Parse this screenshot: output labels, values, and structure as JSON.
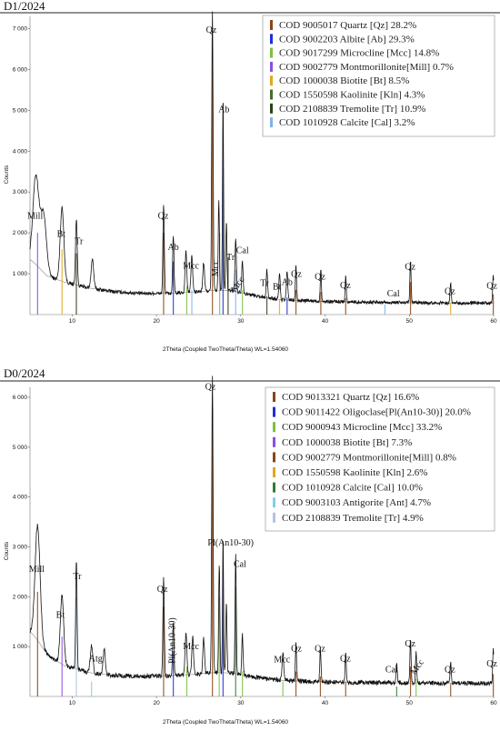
{
  "chart_data": [
    {
      "type": "line",
      "title": "D1/2024",
      "xlabel": "2Theta (Coupled TwoTheta/Theta) WL=1.54060",
      "ylabel": "Counts",
      "xlim": [
        5,
        60
      ],
      "ylim": [
        0,
        7300
      ],
      "xticks": [
        10,
        20,
        30,
        40,
        50,
        60
      ],
      "yticks": [
        1000,
        2000,
        3000,
        4000,
        5000,
        6000,
        7000
      ],
      "ytick_labels": [
        "1 000",
        "2 000",
        "3 000",
        "4 000",
        "5 000",
        "6 000",
        "7 000"
      ],
      "legend_position": "top-right",
      "legend": [
        {
          "label": "COD 9005017 Quartz [Qz] 28.2%",
          "color": "#8B4513"
        },
        {
          "label": "COD 9002203 Albite [Ab] 29.3%",
          "color": "#1f2fd6"
        },
        {
          "label": "COD 9017299 Microcline [Mcc] 14.8%",
          "color": "#7bc043"
        },
        {
          "label": "COD 9002779 Montmorillonite[Mill] 0.7%",
          "color": "#8a4fe0"
        },
        {
          "label": "COD 1000038 Biotite [Bt] 8.5%",
          "color": "#e0a81e"
        },
        {
          "label": "COD 1550598 Kaolinite [Kln] 4.3%",
          "color": "#4a6b2a"
        },
        {
          "label": "COD 2108839 Tremolite [Tr] 10.9%",
          "color": "#2d3f1c"
        },
        {
          "label": "COD 1010928 Calcite [Cal] 3.2%",
          "color": "#7fb3e8"
        }
      ],
      "background": [
        [
          5,
          1350
        ],
        [
          5.6,
          1250
        ],
        [
          7,
          950
        ],
        [
          9,
          800
        ],
        [
          12,
          650
        ],
        [
          15,
          560
        ],
        [
          18,
          520
        ],
        [
          22,
          520
        ],
        [
          25,
          560
        ],
        [
          27,
          600
        ],
        [
          29,
          580
        ],
        [
          32,
          450
        ],
        [
          35,
          360
        ],
        [
          40,
          320
        ],
        [
          50,
          290
        ],
        [
          60,
          280
        ]
      ],
      "peaks": [
        {
          "x": 5.7,
          "y": 2150,
          "w": 0.35
        },
        {
          "x": 6.6,
          "y": 1400,
          "w": 0.35
        },
        {
          "x": 8.8,
          "y": 1800,
          "w": 0.22
        },
        {
          "x": 10.5,
          "y": 1620,
          "w": 0.1
        },
        {
          "x": 12.4,
          "y": 720,
          "w": 0.15
        },
        {
          "x": 20.85,
          "y": 2180,
          "w": 0.08
        },
        {
          "x": 22.0,
          "y": 1400,
          "w": 0.08
        },
        {
          "x": 23.5,
          "y": 1020,
          "w": 0.1
        },
        {
          "x": 24.2,
          "y": 900,
          "w": 0.1
        },
        {
          "x": 25.6,
          "y": 700,
          "w": 0.1
        },
        {
          "x": 26.64,
          "y": 6800,
          "w": 0.08
        },
        {
          "x": 27.4,
          "y": 2200,
          "w": 0.07
        },
        {
          "x": 27.9,
          "y": 4850,
          "w": 0.06
        },
        {
          "x": 28.3,
          "y": 1700,
          "w": 0.07
        },
        {
          "x": 29.4,
          "y": 1300,
          "w": 0.08
        },
        {
          "x": 30.2,
          "y": 800,
          "w": 0.08
        },
        {
          "x": 33.1,
          "y": 680,
          "w": 0.08
        },
        {
          "x": 34.6,
          "y": 660,
          "w": 0.08
        },
        {
          "x": 35.5,
          "y": 720,
          "w": 0.08
        },
        {
          "x": 36.55,
          "y": 850,
          "w": 0.07
        },
        {
          "x": 39.5,
          "y": 800,
          "w": 0.07
        },
        {
          "x": 42.45,
          "y": 620,
          "w": 0.07
        },
        {
          "x": 50.14,
          "y": 1000,
          "w": 0.07
        },
        {
          "x": 54.9,
          "y": 480,
          "w": 0.07
        },
        {
          "x": 59.96,
          "y": 700,
          "w": 0.07
        }
      ],
      "markers": [
        {
          "x": 5.9,
          "h": 2000,
          "color": "#8a4fe0"
        },
        {
          "x": 8.8,
          "h": 1600,
          "color": "#e0a81e"
        },
        {
          "x": 10.5,
          "h": 1500,
          "color": "#2d3f1c"
        },
        {
          "x": 20.85,
          "h": 2000,
          "color": "#8B4513"
        },
        {
          "x": 22.0,
          "h": 1300,
          "color": "#1f2fd6"
        },
        {
          "x": 23.6,
          "h": 700,
          "color": "#7bc043"
        },
        {
          "x": 24.2,
          "h": 600,
          "color": "#7fb3e8"
        },
        {
          "x": 26.64,
          "h": 6500,
          "color": "#8B4513"
        },
        {
          "x": 27.5,
          "h": 2000,
          "color": "#7bc043"
        },
        {
          "x": 27.9,
          "h": 4600,
          "color": "#1f2fd6"
        },
        {
          "x": 28.5,
          "h": 1400,
          "color": "#2d3f1c"
        },
        {
          "x": 29.4,
          "h": 1100,
          "color": "#7fb3e8"
        },
        {
          "x": 30.2,
          "h": 600,
          "color": "#7bc043"
        },
        {
          "x": 33.1,
          "h": 450,
          "color": "#2d3f1c"
        },
        {
          "x": 34.6,
          "h": 380,
          "color": "#e0a81e"
        },
        {
          "x": 35.5,
          "h": 420,
          "color": "#1f2fd6"
        },
        {
          "x": 36.55,
          "h": 600,
          "color": "#8B4513"
        },
        {
          "x": 39.5,
          "h": 550,
          "color": "#8B4513"
        },
        {
          "x": 42.45,
          "h": 400,
          "color": "#8B4513"
        },
        {
          "x": 47.1,
          "h": 250,
          "color": "#7fb3e8"
        },
        {
          "x": 50.14,
          "h": 800,
          "color": "#8B4513"
        },
        {
          "x": 54.9,
          "h": 300,
          "color": "#e0a81e"
        },
        {
          "x": 59.96,
          "h": 500,
          "color": "#8B4513"
        }
      ],
      "annotations": [
        {
          "text": "Mill",
          "x": 5.6,
          "y": 2350
        },
        {
          "text": "Bt",
          "x": 8.7,
          "y": 1900
        },
        {
          "text": "Tr",
          "x": 10.8,
          "y": 1730
        },
        {
          "text": "Qz",
          "x": 20.8,
          "y": 2350
        },
        {
          "text": "Ab",
          "x": 22.0,
          "y": 1580
        },
        {
          "text": "Mcc",
          "x": 24.1,
          "y": 1120
        },
        {
          "text": "Qz",
          "x": 26.5,
          "y": 6900
        },
        {
          "text": "Ab",
          "x": 28.0,
          "y": 4950
        },
        {
          "text": "Mcc",
          "x": 27.3,
          "y": 1130,
          "rotate": -90
        },
        {
          "text": "Tr",
          "x": 28.8,
          "y": 1340
        },
        {
          "text": "Cal",
          "x": 30.2,
          "y": 1500
        },
        {
          "text": "Mcc",
          "x": 29.9,
          "y": 700,
          "rotate": -55
        },
        {
          "text": "Tr",
          "x": 32.8,
          "y": 700
        },
        {
          "text": "Bt",
          "x": 34.3,
          "y": 610
        },
        {
          "text": "Ab",
          "x": 35.5,
          "y": 720
        },
        {
          "text": "Qz",
          "x": 36.6,
          "y": 920
        },
        {
          "text": "Qz",
          "x": 39.4,
          "y": 860
        },
        {
          "text": "Qz",
          "x": 42.4,
          "y": 650
        },
        {
          "text": "Cal",
          "x": 48.1,
          "y": 450
        },
        {
          "text": "Qz",
          "x": 50.1,
          "y": 1100
        },
        {
          "text": "Qz",
          "x": 54.8,
          "y": 500
        },
        {
          "text": "Qz",
          "x": 59.8,
          "y": 630
        }
      ]
    },
    {
      "type": "line",
      "title": "D0/2024",
      "xlabel": "2Theta (Coupled TwoTheta/Theta) WL=1.54060",
      "ylabel": "Counts",
      "xlim": [
        5,
        60
      ],
      "ylim": [
        0,
        6200
      ],
      "xticks": [
        10,
        20,
        30,
        40,
        50,
        60
      ],
      "yticks": [
        1000,
        2000,
        3000,
        4000,
        5000,
        6000
      ],
      "ytick_labels": [
        "1 000",
        "2 000",
        "3 000",
        "4 000",
        "5 000",
        "6 000"
      ],
      "legend_position": "top-right",
      "legend": [
        {
          "label": "COD 9013321 Quartz [Qz] 16.6%",
          "color": "#8B4513"
        },
        {
          "label": "COD 9011422 Oligoclase[Pl(An10-30)] 20.0%",
          "color": "#1f2fd6"
        },
        {
          "label": "COD 9000943 Microcline [Mcc] 33.2%",
          "color": "#7bc043"
        },
        {
          "label": "COD 1000038 Biotite [Bt] 7.3%",
          "color": "#8a4fe0"
        },
        {
          "label": "COD 9002779 Montmorillonite[Mill] 0.8%",
          "color": "#8B4513"
        },
        {
          "label": "COD 1550598 Kaolinite [Kln] 2.6%",
          "color": "#e0a81e"
        },
        {
          "label": "COD 1010928 Calcite [Cal] 10.0%",
          "color": "#2e7d32"
        },
        {
          "label": "COD 9003103 Antigorite [Ant] 4.7%",
          "color": "#7fd0e8"
        },
        {
          "label": "COD 2108839 Tremolite [Tr] 4.9%",
          "color": "#b0c4de"
        }
      ],
      "background": [
        [
          5,
          1300
        ],
        [
          5.6,
          1200
        ],
        [
          7,
          850
        ],
        [
          9,
          620
        ],
        [
          12,
          480
        ],
        [
          15,
          420
        ],
        [
          18,
          400
        ],
        [
          22,
          420
        ],
        [
          25,
          450
        ],
        [
          27,
          480
        ],
        [
          29,
          470
        ],
        [
          32,
          380
        ],
        [
          35,
          320
        ],
        [
          40,
          290
        ],
        [
          50,
          270
        ],
        [
          60,
          260
        ]
      ],
      "peaks": [
        {
          "x": 5.9,
          "y": 2300,
          "w": 0.3
        },
        {
          "x": 8.8,
          "y": 1400,
          "w": 0.2
        },
        {
          "x": 10.5,
          "y": 2200,
          "w": 0.08
        },
        {
          "x": 12.3,
          "y": 560,
          "w": 0.15
        },
        {
          "x": 13.8,
          "y": 520,
          "w": 0.12
        },
        {
          "x": 20.85,
          "y": 1950,
          "w": 0.08
        },
        {
          "x": 22.0,
          "y": 1100,
          "w": 0.08
        },
        {
          "x": 23.5,
          "y": 850,
          "w": 0.1
        },
        {
          "x": 24.3,
          "y": 750,
          "w": 0.1
        },
        {
          "x": 25.6,
          "y": 700,
          "w": 0.1
        },
        {
          "x": 26.64,
          "y": 6000,
          "w": 0.08
        },
        {
          "x": 27.45,
          "y": 2200,
          "w": 0.07
        },
        {
          "x": 27.9,
          "y": 2750,
          "w": 0.06
        },
        {
          "x": 28.3,
          "y": 1400,
          "w": 0.07
        },
        {
          "x": 29.4,
          "y": 2420,
          "w": 0.07
        },
        {
          "x": 30.2,
          "y": 800,
          "w": 0.08
        },
        {
          "x": 35.0,
          "y": 560,
          "w": 0.1
        },
        {
          "x": 36.55,
          "y": 750,
          "w": 0.07
        },
        {
          "x": 39.45,
          "y": 650,
          "w": 0.07
        },
        {
          "x": 42.45,
          "y": 560,
          "w": 0.07
        },
        {
          "x": 48.5,
          "y": 420,
          "w": 0.07
        },
        {
          "x": 50.14,
          "y": 850,
          "w": 0.07
        },
        {
          "x": 50.8,
          "y": 600,
          "w": 0.07
        },
        {
          "x": 54.9,
          "y": 430,
          "w": 0.07
        },
        {
          "x": 59.96,
          "y": 700,
          "w": 0.07
        }
      ],
      "markers": [
        {
          "x": 5.9,
          "h": 2100,
          "color": "#8B4513"
        },
        {
          "x": 8.8,
          "h": 1200,
          "color": "#8a4fe0"
        },
        {
          "x": 10.5,
          "h": 2000,
          "color": "#b0c4de"
        },
        {
          "x": 12.3,
          "h": 300,
          "color": "#7fd0e8"
        },
        {
          "x": 20.85,
          "h": 1800,
          "color": "#8B4513"
        },
        {
          "x": 22.0,
          "h": 900,
          "color": "#1f2fd6"
        },
        {
          "x": 23.6,
          "h": 600,
          "color": "#7bc043"
        },
        {
          "x": 26.64,
          "h": 5800,
          "color": "#8B4513"
        },
        {
          "x": 27.45,
          "h": 2000,
          "color": "#7bc043"
        },
        {
          "x": 27.9,
          "h": 2500,
          "color": "#1f2fd6"
        },
        {
          "x": 29.4,
          "h": 2200,
          "color": "#2e7d32"
        },
        {
          "x": 30.2,
          "h": 500,
          "color": "#7bc043"
        },
        {
          "x": 35.0,
          "h": 300,
          "color": "#7bc043"
        },
        {
          "x": 36.55,
          "h": 500,
          "color": "#8B4513"
        },
        {
          "x": 39.45,
          "h": 400,
          "color": "#8B4513"
        },
        {
          "x": 42.45,
          "h": 300,
          "color": "#8B4513"
        },
        {
          "x": 48.5,
          "h": 200,
          "color": "#2e7d32"
        },
        {
          "x": 50.14,
          "h": 600,
          "color": "#8B4513"
        },
        {
          "x": 50.8,
          "h": 350,
          "color": "#7bc043"
        },
        {
          "x": 54.9,
          "h": 250,
          "color": "#8B4513"
        },
        {
          "x": 59.96,
          "h": 450,
          "color": "#8B4513"
        }
      ],
      "annotations": [
        {
          "text": "Mill",
          "x": 5.8,
          "y": 2500
        },
        {
          "text": "Bt",
          "x": 8.6,
          "y": 1580
        },
        {
          "text": "Tr",
          "x": 10.6,
          "y": 2350
        },
        {
          "text": "Atg",
          "x": 12.8,
          "y": 700
        },
        {
          "text": "Qz",
          "x": 20.7,
          "y": 2100
        },
        {
          "text": "Pl(An10-30)",
          "x": 22.2,
          "y": 1120,
          "rotate": -90
        },
        {
          "text": "Mcc",
          "x": 24.1,
          "y": 950
        },
        {
          "text": "Qz",
          "x": 26.4,
          "y": 6150
        },
        {
          "text": "Pl(An10-30)",
          "x": 28.8,
          "y": 3030
        },
        {
          "text": "Cal",
          "x": 29.9,
          "y": 2600
        },
        {
          "text": "Mcc",
          "x": 34.9,
          "y": 680
        },
        {
          "text": "Qz",
          "x": 36.6,
          "y": 900
        },
        {
          "text": "Qz",
          "x": 39.4,
          "y": 900
        },
        {
          "text": "Qz",
          "x": 42.4,
          "y": 700
        },
        {
          "text": "Cal",
          "x": 47.9,
          "y": 480
        },
        {
          "text": "Qz",
          "x": 50.1,
          "y": 1000
        },
        {
          "text": "Mcc",
          "x": 51.2,
          "y": 560,
          "rotate": -55
        },
        {
          "text": "Qz",
          "x": 54.8,
          "y": 480
        },
        {
          "text": "Qz",
          "x": 59.8,
          "y": 600
        }
      ]
    }
  ]
}
